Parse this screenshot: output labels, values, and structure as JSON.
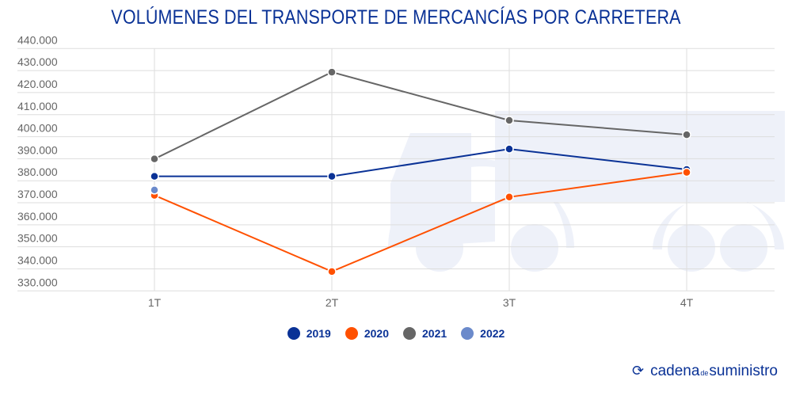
{
  "chart_data": {
    "type": "line",
    "title": "VOLÚMENES DEL TRANSPORTE DE MERCANCÍAS POR CARRETERA",
    "categories": [
      "1T",
      "2T",
      "3T",
      "4T"
    ],
    "ylim": [
      330000,
      440000
    ],
    "yticks": [
      "440.000",
      "430.000",
      "420.000",
      "410.000",
      "400.000",
      "390.000",
      "380.000",
      "370.000",
      "360.000",
      "350.000",
      "340.000",
      "330.000"
    ],
    "ytick_values": [
      440000,
      430000,
      420000,
      410000,
      400000,
      390000,
      380000,
      370000,
      360000,
      350000,
      340000,
      330000
    ],
    "grid": true,
    "legend_position": "bottom",
    "series": [
      {
        "name": "2019",
        "color": "#0a3296",
        "values": [
          382000,
          382000,
          394400,
          385100
        ]
      },
      {
        "name": "2020",
        "color": "#ff5000",
        "values": [
          373400,
          338800,
          372600,
          383800
        ]
      },
      {
        "name": "2021",
        "color": "#666666",
        "values": [
          389900,
          429300,
          407400,
          400900
        ]
      },
      {
        "name": "2022",
        "color": "#6b8acb",
        "values": [
          375800,
          null,
          null,
          null
        ]
      }
    ]
  },
  "logo": {
    "text_a": "cadena",
    "text_de": "de",
    "text_b": "suministro"
  }
}
